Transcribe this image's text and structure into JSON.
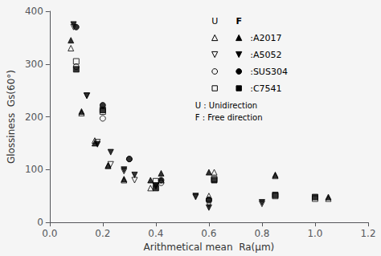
{
  "chart_data": {
    "type": "scatter",
    "xlabel": "Arithmetical mean  Ra(μm)",
    "ylabel": "Glossiness  Gs(60°)",
    "xlim": [
      0,
      1.2
    ],
    "ylim": [
      0,
      400
    ],
    "xticks": [
      {
        "value": 0,
        "label": "0.0"
      },
      0.2,
      0.4,
      0.6,
      0.8,
      {
        "value": 1.0,
        "label": "1.0"
      },
      1.2
    ],
    "yticks": [
      0,
      100,
      200,
      300,
      400
    ],
    "grid": false,
    "background": "#f5f5f5",
    "legend_columns": [
      "U",
      "F"
    ],
    "annotations": [
      "U : Unidirection",
      "F : Free direction"
    ],
    "series": [
      {
        "name": ":A2017",
        "group": "U",
        "marker": "triangle-up-open",
        "color": "#000000",
        "x": [
          0.08,
          0.12,
          0.17,
          0.22,
          0.28,
          0.38,
          0.42,
          0.6,
          0.62,
          0.85,
          1.05
        ],
        "values": [
          330,
          207,
          155,
          107,
          80,
          65,
          80,
          50,
          95,
          88,
          45
        ]
      },
      {
        "name": ":A2017",
        "group": "F",
        "marker": "triangle-up",
        "color": "#000000",
        "x": [
          0.08,
          0.12,
          0.17,
          0.22,
          0.28,
          0.38,
          0.42,
          0.6,
          0.85,
          1.05
        ],
        "values": [
          345,
          210,
          150,
          108,
          82,
          80,
          93,
          95,
          90,
          48
        ]
      },
      {
        "name": ":A5052",
        "group": "U",
        "marker": "triangle-down-open",
        "color": "#000000",
        "x": [
          0.09,
          0.14,
          0.18,
          0.23,
          0.28,
          0.32,
          0.4,
          0.55,
          0.6,
          0.8
        ],
        "values": [
          370,
          240,
          152,
          110,
          97,
          80,
          68,
          48,
          35,
          35
        ]
      },
      {
        "name": ":A5052",
        "group": "F",
        "marker": "triangle-down",
        "color": "#000000",
        "x": [
          0.09,
          0.14,
          0.18,
          0.23,
          0.28,
          0.32,
          0.4,
          0.55,
          0.6,
          0.8
        ],
        "values": [
          375,
          240,
          148,
          133,
          100,
          90,
          70,
          50,
          28,
          38
        ]
      },
      {
        "name": ":SUS304",
        "group": "U",
        "marker": "circle-open",
        "color": "#000000",
        "x": [
          0.1,
          0.2,
          0.3,
          0.42,
          0.6
        ],
        "values": [
          295,
          197,
          120,
          75,
          42
        ]
      },
      {
        "name": ":SUS304",
        "group": "F",
        "marker": "circle",
        "color": "#000000",
        "x": [
          0.1,
          0.2,
          0.3,
          0.42,
          0.6
        ],
        "values": [
          370,
          222,
          120,
          80,
          43
        ]
      },
      {
        "name": ":C7541",
        "group": "U",
        "marker": "square-open",
        "color": "#000000",
        "x": [
          0.1,
          0.2,
          0.4,
          0.62,
          0.85,
          1.0
        ],
        "values": [
          305,
          210,
          78,
          82,
          50,
          45
        ]
      },
      {
        "name": ":C7541",
        "group": "F",
        "marker": "square",
        "color": "#000000",
        "x": [
          0.1,
          0.2,
          0.4,
          0.62,
          0.85,
          1.0
        ],
        "values": [
          290,
          213,
          65,
          80,
          52,
          48
        ]
      }
    ]
  }
}
